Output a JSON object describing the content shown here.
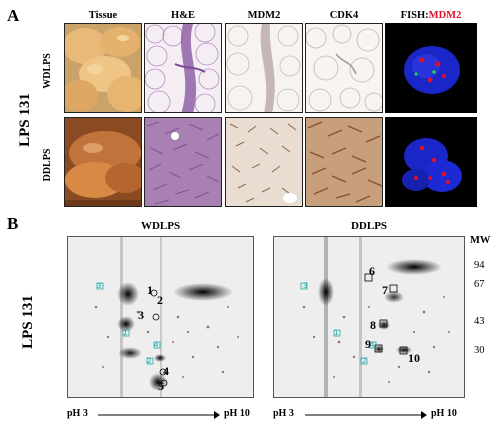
{
  "panel_a": {
    "letter": "A",
    "column_headers": [
      "Tissue",
      "H&E",
      "MDM2",
      "CDK4"
    ],
    "fish_header": {
      "prefix": "FISH:",
      "target": "MDM2"
    },
    "row_labels": [
      "WDLPS",
      "DDLPS"
    ],
    "side_label": "LPS 131"
  },
  "panel_b": {
    "letter": "B",
    "side_label": "LPS 131",
    "gels": [
      {
        "title": "WDLPS",
        "ph_start": "pH 3",
        "ph_end": "pH 10",
        "spots": [
          "1",
          "2",
          "3",
          "4",
          "5"
        ],
        "markers": [
          "3",
          "1",
          "4",
          "2"
        ]
      },
      {
        "title": "DDLPS",
        "ph_start": "pH 3",
        "ph_end": "pH 10",
        "spots": [
          "6",
          "7",
          "8",
          "9",
          "10"
        ],
        "markers": [
          "3",
          "1",
          "4",
          "2"
        ]
      }
    ],
    "mw_label": "MW",
    "mw_ticks": [
      "94",
      "67",
      "43",
      "30"
    ]
  },
  "colors": {
    "fish_red": "#e0102a",
    "marker_cyan": "#22a8a8"
  }
}
